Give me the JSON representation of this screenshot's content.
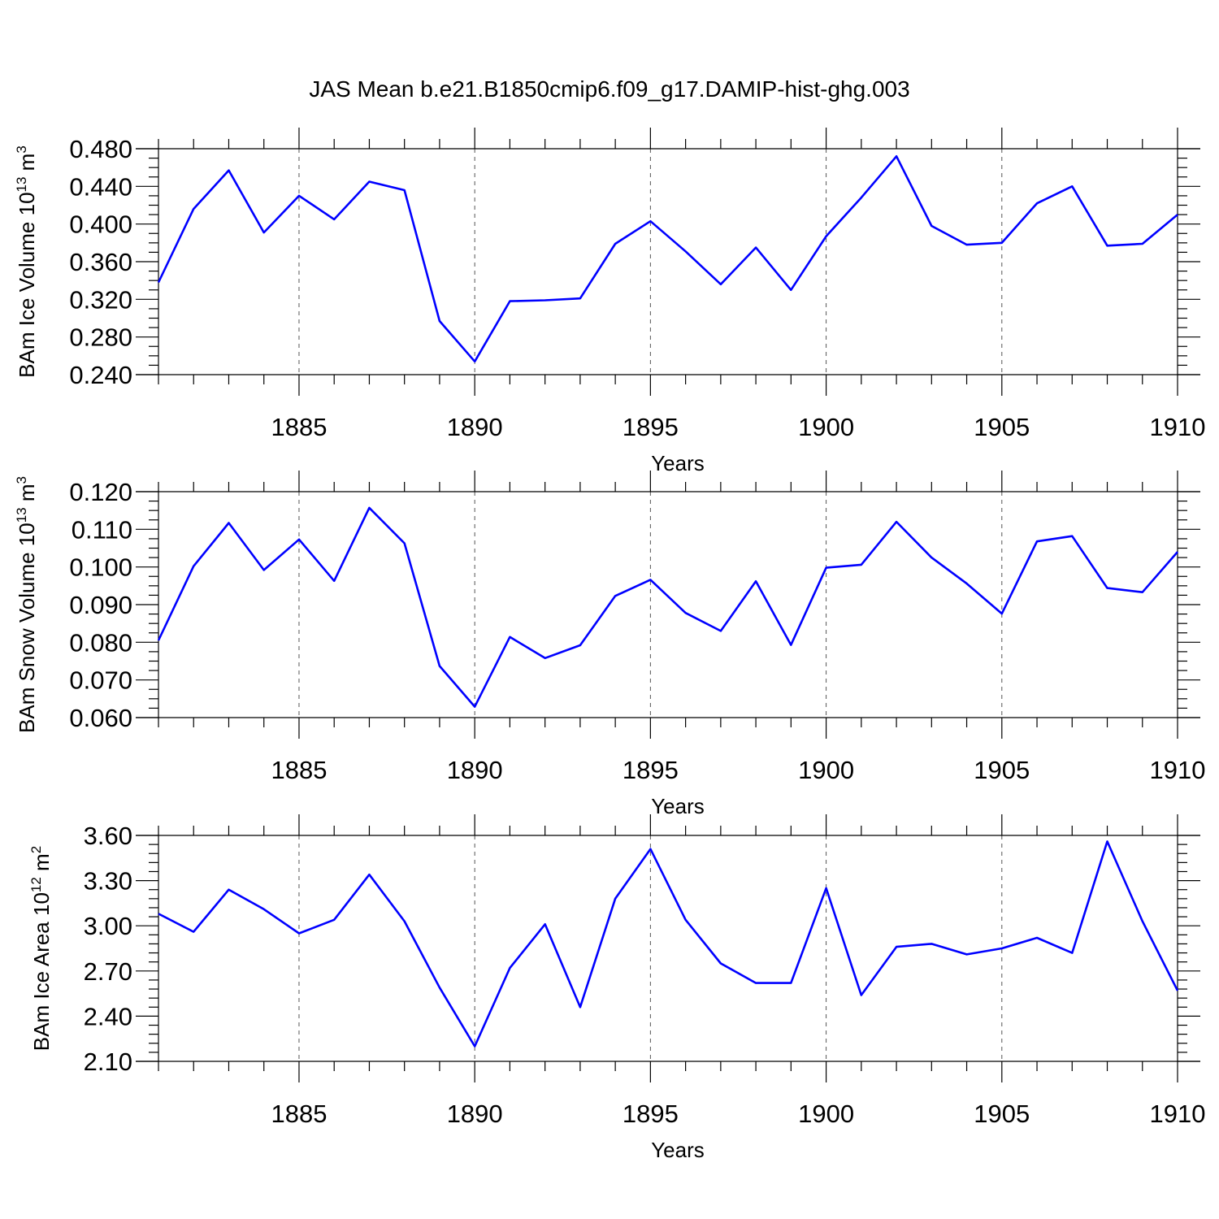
{
  "chart_data": {
    "title": "JAS Mean b.e21.B1850cmip6.f09_g17.DAMIP-hist-ghg.003",
    "colors": {
      "line": "#0000ff",
      "grid": "#555555"
    },
    "panels": [
      {
        "type": "line",
        "ylabel": {
          "text": "BAm Ice Volume 10",
          "exp": "13",
          "unit": "m",
          "unit_exp": "3"
        },
        "xlabel": "Years",
        "xlim": [
          1881,
          1910
        ],
        "ylim": [
          0.24,
          0.48
        ],
        "yticks": [
          "0.240",
          "0.280",
          "0.320",
          "0.360",
          "0.400",
          "0.440",
          "0.480"
        ],
        "xticks": [
          "1885",
          "1890",
          "1895",
          "1900",
          "1905",
          "1910"
        ],
        "grid": "x-major-dashed",
        "x": [
          1881,
          1882,
          1883,
          1884,
          1885,
          1886,
          1887,
          1888,
          1889,
          1890,
          1891,
          1892,
          1893,
          1894,
          1895,
          1896,
          1897,
          1898,
          1899,
          1900,
          1901,
          1902,
          1903,
          1904,
          1905,
          1906,
          1907,
          1908,
          1909,
          1910
        ],
        "values": [
          0.338,
          0.416,
          0.457,
          0.391,
          0.43,
          0.405,
          0.445,
          0.436,
          0.297,
          0.254,
          0.318,
          0.319,
          0.321,
          0.379,
          0.403,
          0.371,
          0.336,
          0.375,
          0.33,
          0.387,
          0.428,
          0.472,
          0.398,
          0.378,
          0.38,
          0.422,
          0.44,
          0.377,
          0.379,
          0.41
        ]
      },
      {
        "type": "line",
        "ylabel": {
          "text": "BAm Snow Volume 10",
          "exp": "13",
          "unit": "m",
          "unit_exp": "3"
        },
        "xlabel": "Years",
        "xlim": [
          1881,
          1910
        ],
        "ylim": [
          0.06,
          0.12
        ],
        "yticks": [
          "0.060",
          "0.070",
          "0.080",
          "0.090",
          "0.100",
          "0.110",
          "0.120"
        ],
        "xticks": [
          "1885",
          "1890",
          "1895",
          "1900",
          "1905",
          "1910"
        ],
        "grid": "x-major-dashed",
        "x": [
          1881,
          1882,
          1883,
          1884,
          1885,
          1886,
          1887,
          1888,
          1889,
          1890,
          1891,
          1892,
          1893,
          1894,
          1895,
          1896,
          1897,
          1898,
          1899,
          1900,
          1901,
          1902,
          1903,
          1904,
          1905,
          1906,
          1907,
          1908,
          1909,
          1910
        ],
        "values": [
          0.0805,
          0.1002,
          0.1117,
          0.0992,
          0.1073,
          0.0963,
          0.1157,
          0.1063,
          0.0737,
          0.0629,
          0.0814,
          0.0758,
          0.0792,
          0.0923,
          0.0966,
          0.0878,
          0.083,
          0.0962,
          0.0793,
          0.0998,
          0.1006,
          0.112,
          0.1025,
          0.0956,
          0.0876,
          0.1068,
          0.1082,
          0.0944,
          0.0933,
          0.104
        ]
      },
      {
        "type": "line",
        "ylabel": {
          "text": "BAm Ice Area 10",
          "exp": "12",
          "unit": "m",
          "unit_exp": "2"
        },
        "xlabel": "Years",
        "xlim": [
          1881,
          1910
        ],
        "ylim": [
          2.1,
          3.6
        ],
        "yticks": [
          "2.10",
          "2.40",
          "2.70",
          "3.00",
          "3.30",
          "3.60"
        ],
        "xticks": [
          "1885",
          "1890",
          "1895",
          "1900",
          "1905",
          "1910"
        ],
        "grid": "x-major-dashed",
        "x": [
          1881,
          1882,
          1883,
          1884,
          1885,
          1886,
          1887,
          1888,
          1889,
          1890,
          1891,
          1892,
          1893,
          1894,
          1895,
          1896,
          1897,
          1898,
          1899,
          1900,
          1901,
          1902,
          1903,
          1904,
          1905,
          1906,
          1907,
          1908,
          1909,
          1910
        ],
        "values": [
          3.08,
          2.96,
          3.24,
          3.11,
          2.95,
          3.04,
          3.34,
          3.03,
          2.59,
          2.2,
          2.72,
          3.01,
          2.46,
          3.18,
          3.51,
          3.04,
          2.75,
          2.62,
          2.62,
          3.25,
          2.54,
          2.86,
          2.88,
          2.81,
          2.85,
          2.92,
          2.82,
          3.56,
          3.03,
          2.57
        ]
      }
    ]
  }
}
